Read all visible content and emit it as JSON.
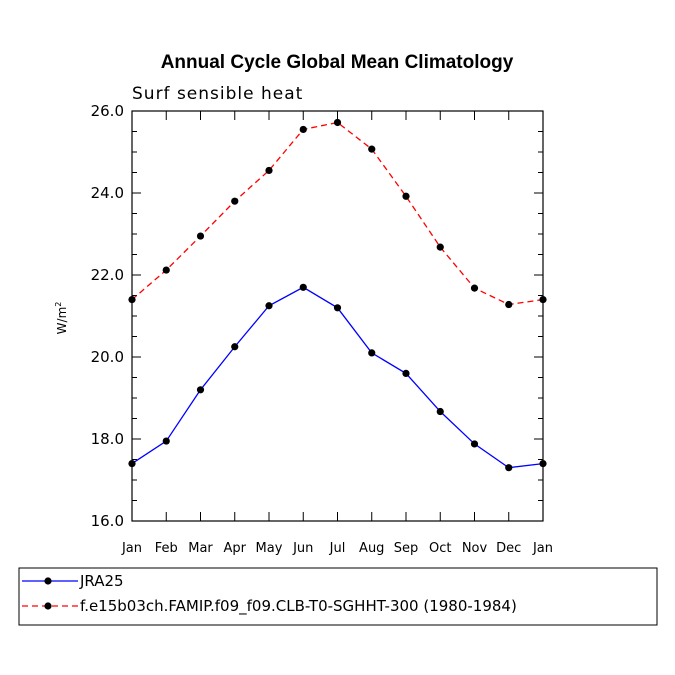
{
  "chart_data": {
    "type": "line",
    "title": "Annual Cycle Global Mean Climatology",
    "subtitle": "Surf sensible heat",
    "xlabel": "",
    "ylabel": "W/m",
    "ylabel_sup": "2",
    "categories": [
      "Jan",
      "Feb",
      "Mar",
      "Apr",
      "May",
      "Jun",
      "Jul",
      "Aug",
      "Sep",
      "Oct",
      "Nov",
      "Dec",
      "Jan"
    ],
    "ylim": [
      16.0,
      26.0
    ],
    "yticks": [
      "16.0",
      "18.0",
      "20.0",
      "22.0",
      "24.0",
      "26.0"
    ],
    "ytick_values": [
      16,
      18,
      20,
      22,
      24,
      26
    ],
    "series": [
      {
        "name": "JRA25",
        "color": "#0000ff",
        "line_style": "solid",
        "values": [
          17.4,
          17.95,
          19.2,
          20.25,
          21.25,
          21.7,
          21.2,
          20.1,
          19.6,
          18.67,
          17.88,
          17.3,
          17.4
        ]
      },
      {
        "name": "f.e15b03ch.FAMIP.f09_f09.CLB-T0-SGHHT-300 (1980-1984)",
        "color": "#ff0000",
        "line_style": "dashed",
        "values": [
          21.4,
          22.12,
          22.95,
          23.8,
          24.55,
          25.55,
          25.72,
          25.07,
          23.92,
          22.68,
          21.68,
          21.28,
          21.4
        ]
      }
    ],
    "legend_position": "bottom"
  }
}
